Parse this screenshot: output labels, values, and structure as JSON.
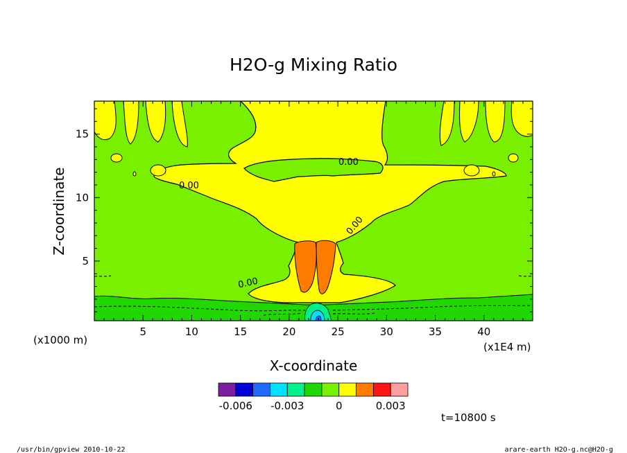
{
  "chart_data": {
    "type": "heatmap",
    "title": "H2O-g Mixing Ratio",
    "xlabel": "X-coordinate",
    "ylabel": "Z-coordinate",
    "x_unit": "(x1E4 m)",
    "y_unit": "(x1000 m)",
    "xlim": [
      0,
      45
    ],
    "ylim": [
      0.3,
      17.6
    ],
    "x_ticks": [
      "5",
      "10",
      "15",
      "20",
      "25",
      "30",
      "35",
      "40"
    ],
    "x_tick_values": [
      5,
      10,
      15,
      20,
      25,
      30,
      35,
      40
    ],
    "y_ticks": [
      "5",
      "10",
      "15"
    ],
    "y_tick_values": [
      5,
      10,
      15
    ],
    "contour_labels": [
      "0.00",
      "0.00",
      "0.00",
      "0.00"
    ],
    "colorbar": {
      "levels": [
        -0.007,
        -0.006,
        -0.005,
        -0.004,
        -0.003,
        -0.002,
        -0.001,
        0,
        0.001,
        0.002,
        0.003,
        0.004
      ],
      "colors": [
        "#7b1fa0",
        "#0000d8",
        "#1f6bff",
        "#00e0ff",
        "#00f08c",
        "#20d800",
        "#78f000",
        "#ffff00",
        "#ff7c00",
        "#ff1414",
        "#ffa0a0"
      ],
      "tick_labels": [
        "-0.006",
        "-0.003",
        "0",
        "0.003"
      ],
      "tick_values": [
        -0.006,
        -0.003,
        0,
        0.003
      ]
    },
    "regions": [
      {
        "level": "0 to 0.001",
        "description": "upper anvil plume around x=10-35, z=8-17.6"
      },
      {
        "level": "0.001 to 0.002",
        "description": "convective core around x=20-25, z=1-6"
      },
      {
        "level": "-0.001 to 0",
        "description": "background"
      },
      {
        "level": "-0.002 to -0.001",
        "description": "near-surface layer z<2"
      },
      {
        "level": "-0.005 to -0.003",
        "description": "small patches near x=21-24, z<1"
      }
    ]
  },
  "footer": {
    "time": "t=10800 s",
    "program": "/usr/bin/gpview  2010-10-22",
    "source": "arare-earth_H2O-g.nc@H2O-g"
  }
}
